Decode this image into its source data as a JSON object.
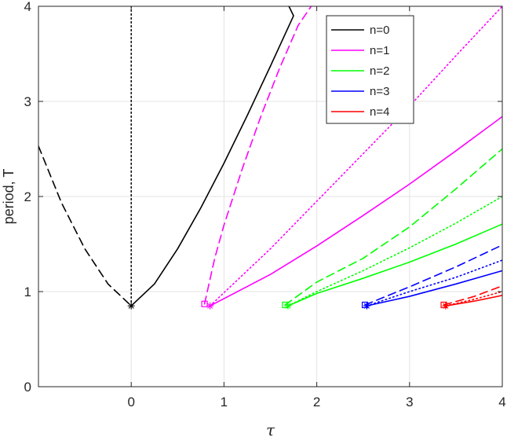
{
  "chart_data": {
    "type": "line",
    "title": "",
    "xlabel": "τ",
    "ylabel": "period, T",
    "xlim": [
      -1,
      4
    ],
    "ylim": [
      0,
      4
    ],
    "xticks": [
      0,
      1,
      2,
      3,
      4
    ],
    "xtick_labels": [
      "0",
      "1",
      "2",
      "3",
      "4"
    ],
    "yticks": [
      0,
      1,
      2,
      3,
      4
    ],
    "ytick_labels": [
      "0",
      "1",
      "2",
      "3",
      "4"
    ],
    "grid": true,
    "legend_position": "top-right",
    "legend": [
      {
        "label": "n=0",
        "color": "#000000"
      },
      {
        "label": "n=1",
        "color": "#ff00ff"
      },
      {
        "label": "n=2",
        "color": "#00ff00"
      },
      {
        "label": "n=3",
        "color": "#0000ff"
      },
      {
        "label": "n=4",
        "color": "#ff0000"
      }
    ],
    "series": [
      {
        "name": "n=0",
        "color": "#000000",
        "style": "dashed",
        "x": [
          -1,
          -0.75,
          -0.5,
          -0.25,
          0
        ],
        "y": [
          2.53,
          1.93,
          1.45,
          1.08,
          0.85
        ]
      },
      {
        "name": "n=0",
        "color": "#000000",
        "style": "dotted",
        "x": [
          0,
          0
        ],
        "y": [
          0.85,
          4
        ]
      },
      {
        "name": "n=0",
        "color": "#000000",
        "style": "solid",
        "x": [
          0,
          0.25,
          0.5,
          0.75,
          1,
          1.25,
          1.5,
          1.75,
          1.7
        ],
        "y": [
          0.85,
          1.08,
          1.45,
          1.88,
          2.35,
          2.85,
          3.37,
          3.9,
          4
        ]
      },
      {
        "name": "n=1",
        "color": "#ff00ff",
        "style": "dashed",
        "x": [
          0.79,
          0.9,
          1.0,
          1.2,
          1.4,
          1.6,
          1.8,
          1.94
        ],
        "y": [
          0.87,
          1.35,
          1.7,
          2.3,
          2.85,
          3.35,
          3.8,
          4
        ]
      },
      {
        "name": "n=1",
        "color": "#ff00ff",
        "style": "dotted",
        "x": [
          0.85,
          1.5,
          2,
          2.5,
          3,
          3.5,
          4
        ],
        "y": [
          0.85,
          1.45,
          1.95,
          2.45,
          2.95,
          3.48,
          4
        ]
      },
      {
        "name": "n=1",
        "color": "#ff00ff",
        "style": "solid",
        "x": [
          0.85,
          1.5,
          2,
          2.5,
          3,
          3.5,
          4
        ],
        "y": [
          0.85,
          1.18,
          1.48,
          1.8,
          2.13,
          2.48,
          2.84
        ]
      },
      {
        "name": "n=2",
        "color": "#00ff00",
        "style": "dashed",
        "x": [
          1.66,
          2,
          2.5,
          3,
          3.5,
          4
        ],
        "y": [
          0.86,
          1.1,
          1.35,
          1.68,
          2.08,
          2.5
        ]
      },
      {
        "name": "n=2",
        "color": "#00ff00",
        "style": "dotted",
        "x": [
          1.69,
          2,
          2.5,
          3,
          3.5,
          4
        ],
        "y": [
          0.85,
          1.0,
          1.22,
          1.46,
          1.72,
          2.0
        ]
      },
      {
        "name": "n=2",
        "color": "#00ff00",
        "style": "solid",
        "x": [
          1.69,
          2,
          2.5,
          3,
          3.5,
          4
        ],
        "y": [
          0.85,
          0.98,
          1.14,
          1.31,
          1.5,
          1.71
        ]
      },
      {
        "name": "n=3",
        "color": "#0000ff",
        "style": "dashed",
        "x": [
          2.52,
          3,
          3.5,
          4
        ],
        "y": [
          0.86,
          1.05,
          1.26,
          1.49
        ]
      },
      {
        "name": "n=3",
        "color": "#0000ff",
        "style": "dotted",
        "x": [
          2.54,
          3,
          3.5,
          4
        ],
        "y": [
          0.85,
          1.0,
          1.15,
          1.33
        ]
      },
      {
        "name": "n=3",
        "color": "#0000ff",
        "style": "solid",
        "x": [
          2.54,
          3,
          3.5,
          4
        ],
        "y": [
          0.85,
          0.95,
          1.08,
          1.22
        ]
      },
      {
        "name": "n=4",
        "color": "#ff0000",
        "style": "dashed",
        "x": [
          3.37,
          3.7,
          4
        ],
        "y": [
          0.86,
          0.95,
          1.06
        ]
      },
      {
        "name": "n=4",
        "color": "#ff0000",
        "style": "dotted",
        "x": [
          3.39,
          3.7,
          4
        ],
        "y": [
          0.85,
          0.92,
          1.0
        ]
      },
      {
        "name": "n=4",
        "color": "#ff0000",
        "style": "solid",
        "x": [
          3.39,
          3.7,
          4
        ],
        "y": [
          0.85,
          0.9,
          0.96
        ]
      }
    ],
    "markers": [
      {
        "x": 0,
        "y": 0.85,
        "shape": "star",
        "color": "#000000"
      },
      {
        "x": 0.79,
        "y": 0.87,
        "shape": "square",
        "color": "#ff00ff"
      },
      {
        "x": 0.85,
        "y": 0.85,
        "shape": "star",
        "color": "#ff00ff"
      },
      {
        "x": 1.66,
        "y": 0.86,
        "shape": "square",
        "color": "#00ff00"
      },
      {
        "x": 1.69,
        "y": 0.85,
        "shape": "star",
        "color": "#00ff00"
      },
      {
        "x": 2.52,
        "y": 0.86,
        "shape": "square",
        "color": "#0000ff"
      },
      {
        "x": 2.54,
        "y": 0.85,
        "shape": "star",
        "color": "#0000ff"
      },
      {
        "x": 3.37,
        "y": 0.86,
        "shape": "square",
        "color": "#ff0000"
      },
      {
        "x": 3.39,
        "y": 0.85,
        "shape": "star",
        "color": "#ff0000"
      }
    ]
  }
}
